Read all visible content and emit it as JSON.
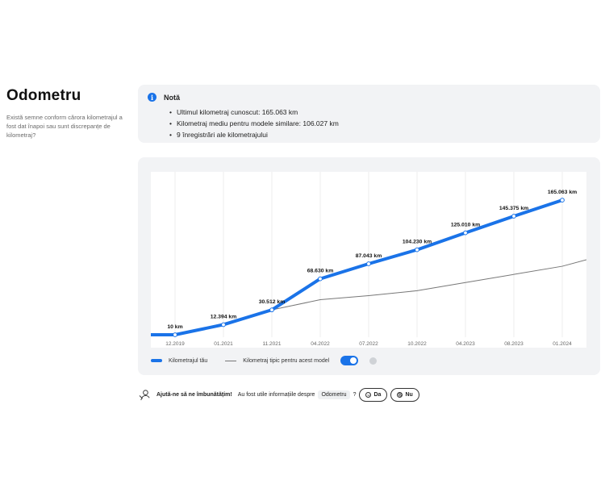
{
  "section": {
    "title": "Odometru",
    "subtitle": "Există semne conform cărora kilometrajul a fost dat înapoi sau sunt discrepanțe de kilometraj?"
  },
  "note": {
    "icon": "info-icon",
    "title": "Notă",
    "items": [
      "Ultimul kilometraj cunoscut: 165.063 km",
      "Kilometraj mediu pentru modele similare: 106.027 km",
      "9 înregistrări ale kilometrajului"
    ]
  },
  "chart_data": {
    "type": "line",
    "x_ticks": [
      "12.2019",
      "01.2021",
      "11.2021",
      "04.2022",
      "07.2022",
      "10.2022",
      "04.2023",
      "08.2023",
      "01.2024"
    ],
    "series": [
      {
        "name": "Kilometrajul tău",
        "color": "#1a73e8",
        "points": [
          {
            "x": "12.2019",
            "y": 10,
            "label": "10 km"
          },
          {
            "x": "01.2021",
            "y": 12394,
            "label": "12.394 km"
          },
          {
            "x": "11.2021",
            "y": 30512,
            "label": "30.512 km"
          },
          {
            "x": "04.2022",
            "y": 68630,
            "label": "68.630 km"
          },
          {
            "x": "07.2022",
            "y": 87043,
            "label": "87.043 km"
          },
          {
            "x": "10.2022",
            "y": 104230,
            "label": "104.230 km"
          },
          {
            "x": "04.2023",
            "y": 125010,
            "label": "125.010 km"
          },
          {
            "x": "08.2023",
            "y": 145375,
            "label": "145.375 km"
          },
          {
            "x": "01.2024",
            "y": 165063,
            "label": "165.063 km"
          }
        ]
      },
      {
        "name": "Kilometraj tipic pentru acest model",
        "color": "#777777",
        "points": [
          {
            "x": "12.2019",
            "y": 0
          },
          {
            "x": "01.2021",
            "y": 14000
          },
          {
            "x": "11.2021",
            "y": 30512
          },
          {
            "x": "04.2022",
            "y": 43000
          },
          {
            "x": "07.2022",
            "y": 48000
          },
          {
            "x": "10.2022",
            "y": 54000
          },
          {
            "x": "04.2023",
            "y": 64000
          },
          {
            "x": "08.2023",
            "y": 74000
          },
          {
            "x": "01.2024",
            "y": 84000
          },
          {
            "x": "end",
            "y": 92000
          }
        ]
      }
    ],
    "ylim": [
      0,
      180000
    ],
    "grid": true,
    "legend_placement": "bottom-left"
  },
  "legend": {
    "series1": "Kilometrajul tău",
    "series2": "Kilometraj tipic pentru acest model",
    "toggle_on": true
  },
  "feedback": {
    "prompt": "Ajută-ne să ne îmbunătățim!",
    "question": "Au fost utile informațiile despre",
    "topic": "Odometru",
    "question_mark": "?",
    "yes": "Da",
    "no": "Nu"
  }
}
